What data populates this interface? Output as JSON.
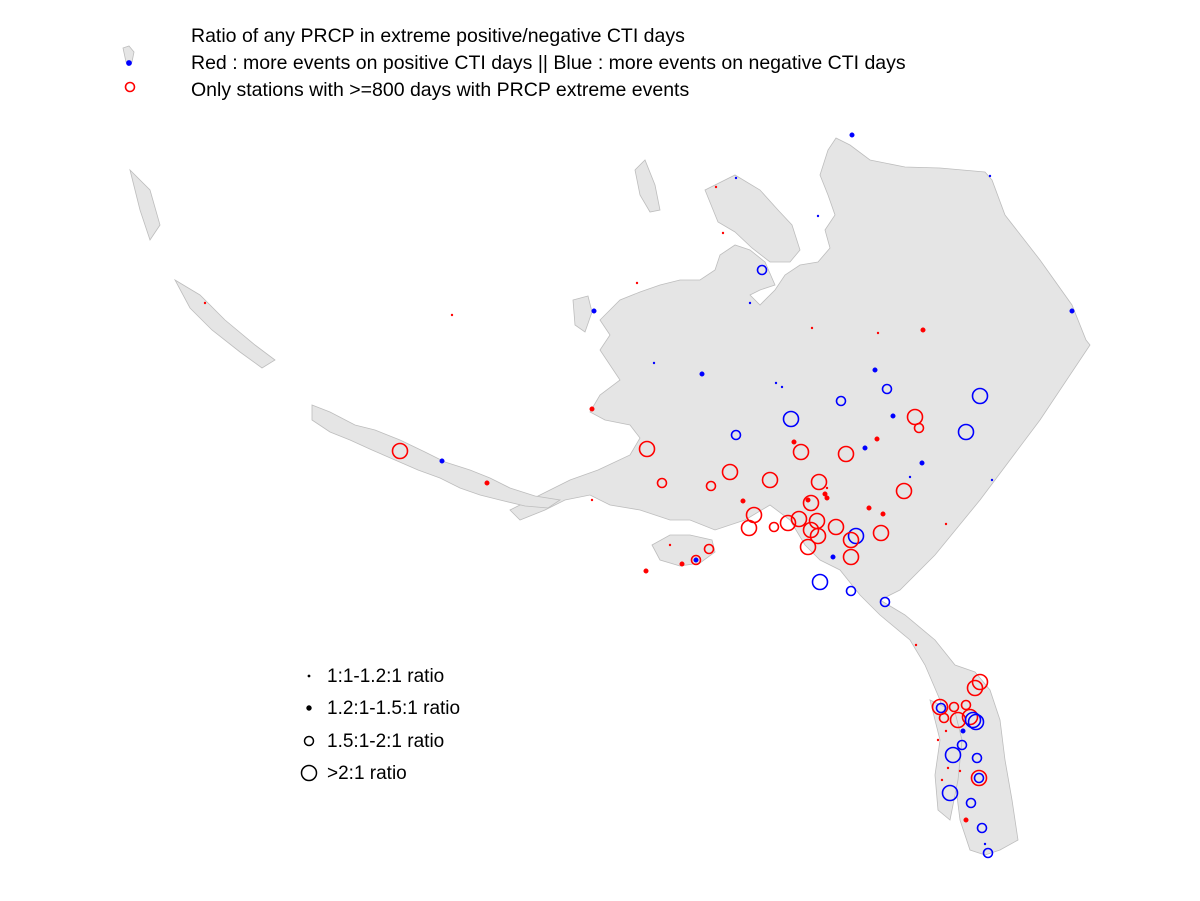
{
  "header": {
    "lines": [
      "Ratio of any PRCP in extreme positive/negative CTI days",
      "Red : more events on positive CTI days || Blue : more events on negative CTI days",
      "Only stations with >=800 days with PRCP extreme events"
    ]
  },
  "colors": {
    "positive": "#ff0000",
    "negative": "#0000ff",
    "land": "#e5e5e5",
    "coast": "#bdbdbd"
  },
  "legend": {
    "items": [
      {
        "label": "1:1-1.2:1 ratio",
        "size_class": 1
      },
      {
        "label": "1.2:1-1.5:1 ratio",
        "size_class": 2
      },
      {
        "label": "1.5:1-2:1 ratio",
        "size_class": 3
      },
      {
        "label": ">2:1 ratio",
        "size_class": 4
      }
    ]
  }
}
